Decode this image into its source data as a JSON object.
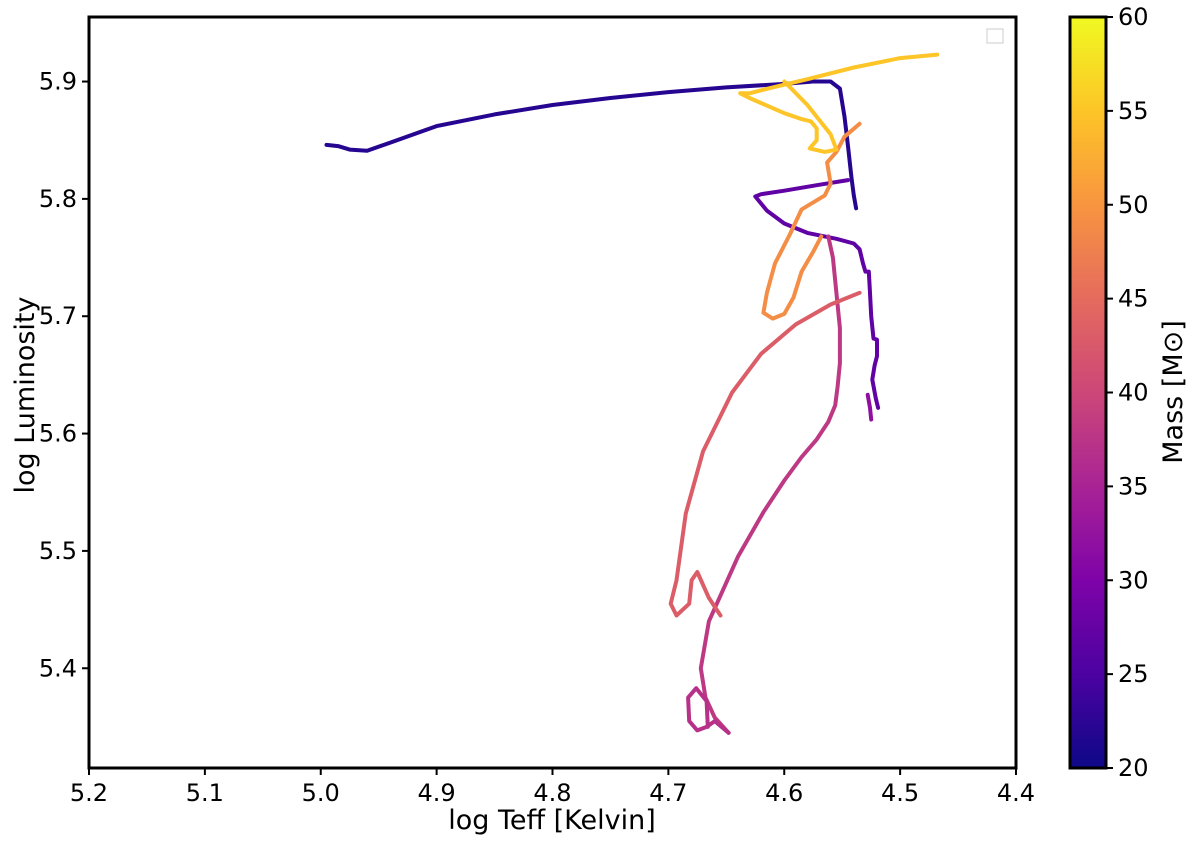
{
  "chart_data": {
    "type": "line",
    "title": "",
    "xlabel": "log Teff [Kelvin]",
    "ylabel": "log Luminosity",
    "xlim": [
      5.2,
      4.4
    ],
    "ylim": [
      5.315,
      5.955
    ],
    "x_inverted": true,
    "x_ticks": [
      "5.2",
      "5.1",
      "5.0",
      "4.9",
      "4.8",
      "4.7",
      "4.6",
      "4.5",
      "4.4"
    ],
    "y_ticks": [
      "5.4",
      "5.5",
      "5.6",
      "5.7",
      "5.8",
      "5.9"
    ],
    "grid": false,
    "legend": "top-right (empty)",
    "colorbar": {
      "label": "Mass [M⊙]",
      "min": 20,
      "max": 60,
      "ticks": [
        "20",
        "25",
        "30",
        "35",
        "40",
        "45",
        "50",
        "55",
        "60"
      ],
      "colormap": "plasma"
    },
    "series": [
      {
        "mass": 22,
        "points": [
          [
            4.995,
            5.846
          ],
          [
            4.985,
            5.845
          ],
          [
            4.975,
            5.842
          ],
          [
            4.96,
            5.841
          ],
          [
            4.94,
            5.848
          ],
          [
            4.9,
            5.862
          ],
          [
            4.85,
            5.872
          ],
          [
            4.8,
            5.88
          ],
          [
            4.75,
            5.886
          ],
          [
            4.7,
            5.891
          ],
          [
            4.65,
            5.895
          ],
          [
            4.6,
            5.898
          ],
          [
            4.575,
            5.9
          ],
          [
            4.56,
            5.9
          ],
          [
            4.552,
            5.894
          ],
          [
            4.548,
            5.87
          ],
          [
            4.545,
            5.845
          ],
          [
            4.542,
            5.818
          ],
          [
            4.54,
            5.803
          ],
          [
            4.538,
            5.792
          ]
        ]
      },
      {
        "mass": 27,
        "points": [
          [
            4.545,
            5.816
          ],
          [
            4.57,
            5.812
          ],
          [
            4.6,
            5.807
          ],
          [
            4.62,
            5.804
          ],
          [
            4.625,
            5.802
          ],
          [
            4.615,
            5.79
          ],
          [
            4.6,
            5.779
          ],
          [
            4.58,
            5.771
          ],
          [
            4.555,
            5.766
          ],
          [
            4.54,
            5.762
          ],
          [
            4.535,
            5.757
          ],
          [
            4.532,
            5.745
          ],
          [
            4.53,
            5.738
          ],
          [
            4.527,
            5.738
          ],
          [
            4.526,
            5.72
          ],
          [
            4.525,
            5.7
          ],
          [
            4.523,
            5.681
          ],
          [
            4.52,
            5.68
          ],
          [
            4.52,
            5.666
          ],
          [
            4.522,
            5.658
          ],
          [
            4.524,
            5.646
          ],
          [
            4.521,
            5.63
          ],
          [
            4.519,
            5.622
          ]
        ]
      },
      {
        "mass": 32,
        "points": [
          [
            4.528,
            5.633
          ],
          [
            4.526,
            5.622
          ],
          [
            4.525,
            5.612
          ]
        ]
      },
      {
        "mass": 38,
        "points": [
          [
            4.648,
            5.345
          ],
          [
            4.66,
            5.358
          ],
          [
            4.668,
            5.375
          ],
          [
            4.672,
            5.4
          ],
          [
            4.665,
            5.44
          ],
          [
            4.64,
            5.495
          ],
          [
            4.618,
            5.533
          ],
          [
            4.6,
            5.56
          ],
          [
            4.585,
            5.58
          ],
          [
            4.572,
            5.595
          ],
          [
            4.562,
            5.61
          ],
          [
            4.556,
            5.624
          ],
          [
            4.554,
            5.64
          ],
          [
            4.552,
            5.66
          ],
          [
            4.552,
            5.69
          ],
          [
            4.555,
            5.72
          ],
          [
            4.558,
            5.75
          ],
          [
            4.562,
            5.768
          ]
        ]
      },
      {
        "mass": 37,
        "points": [
          [
            4.648,
            5.345
          ],
          [
            4.66,
            5.355
          ],
          [
            4.667,
            5.35
          ],
          [
            4.675,
            5.347
          ],
          [
            4.682,
            5.355
          ],
          [
            4.683,
            5.375
          ],
          [
            4.676,
            5.383
          ],
          [
            4.667,
            5.372
          ],
          [
            4.666,
            5.35
          ]
        ]
      },
      {
        "mass": 43,
        "points": [
          [
            4.535,
            5.72
          ],
          [
            4.56,
            5.71
          ],
          [
            4.59,
            5.693
          ],
          [
            4.62,
            5.668
          ],
          [
            4.645,
            5.635
          ],
          [
            4.67,
            5.585
          ],
          [
            4.685,
            5.532
          ],
          [
            4.693,
            5.475
          ],
          [
            4.698,
            5.455
          ],
          [
            4.693,
            5.445
          ],
          [
            4.682,
            5.455
          ],
          [
            4.68,
            5.475
          ],
          [
            4.675,
            5.482
          ],
          [
            4.665,
            5.46
          ],
          [
            4.655,
            5.445
          ]
        ]
      },
      {
        "mass": 49,
        "points": [
          [
            4.535,
            5.864
          ],
          [
            4.548,
            5.853
          ],
          [
            4.555,
            5.84
          ],
          [
            4.563,
            5.831
          ],
          [
            4.56,
            5.813
          ],
          [
            4.565,
            5.803
          ],
          [
            4.585,
            5.791
          ],
          [
            4.595,
            5.77
          ],
          [
            4.608,
            5.745
          ],
          [
            4.615,
            5.72
          ],
          [
            4.618,
            5.703
          ],
          [
            4.61,
            5.698
          ],
          [
            4.6,
            5.702
          ],
          [
            4.592,
            5.716
          ],
          [
            4.585,
            5.738
          ],
          [
            4.575,
            5.755
          ],
          [
            4.568,
            5.768
          ]
        ]
      },
      {
        "mass": 55,
        "points": [
          [
            4.468,
            5.923
          ],
          [
            4.5,
            5.92
          ],
          [
            4.54,
            5.912
          ],
          [
            4.58,
            5.902
          ],
          [
            4.61,
            5.895
          ],
          [
            4.63,
            5.89
          ],
          [
            4.638,
            5.89
          ],
          [
            4.63,
            5.886
          ],
          [
            4.6,
            5.873
          ],
          [
            4.585,
            5.868
          ],
          [
            4.577,
            5.866
          ],
          [
            4.572,
            5.86
          ],
          [
            4.572,
            5.85
          ],
          [
            4.578,
            5.843
          ],
          [
            4.565,
            5.84
          ],
          [
            4.555,
            5.842
          ],
          [
            4.56,
            5.855
          ],
          [
            4.58,
            5.88
          ],
          [
            4.6,
            5.9
          ]
        ]
      }
    ]
  }
}
